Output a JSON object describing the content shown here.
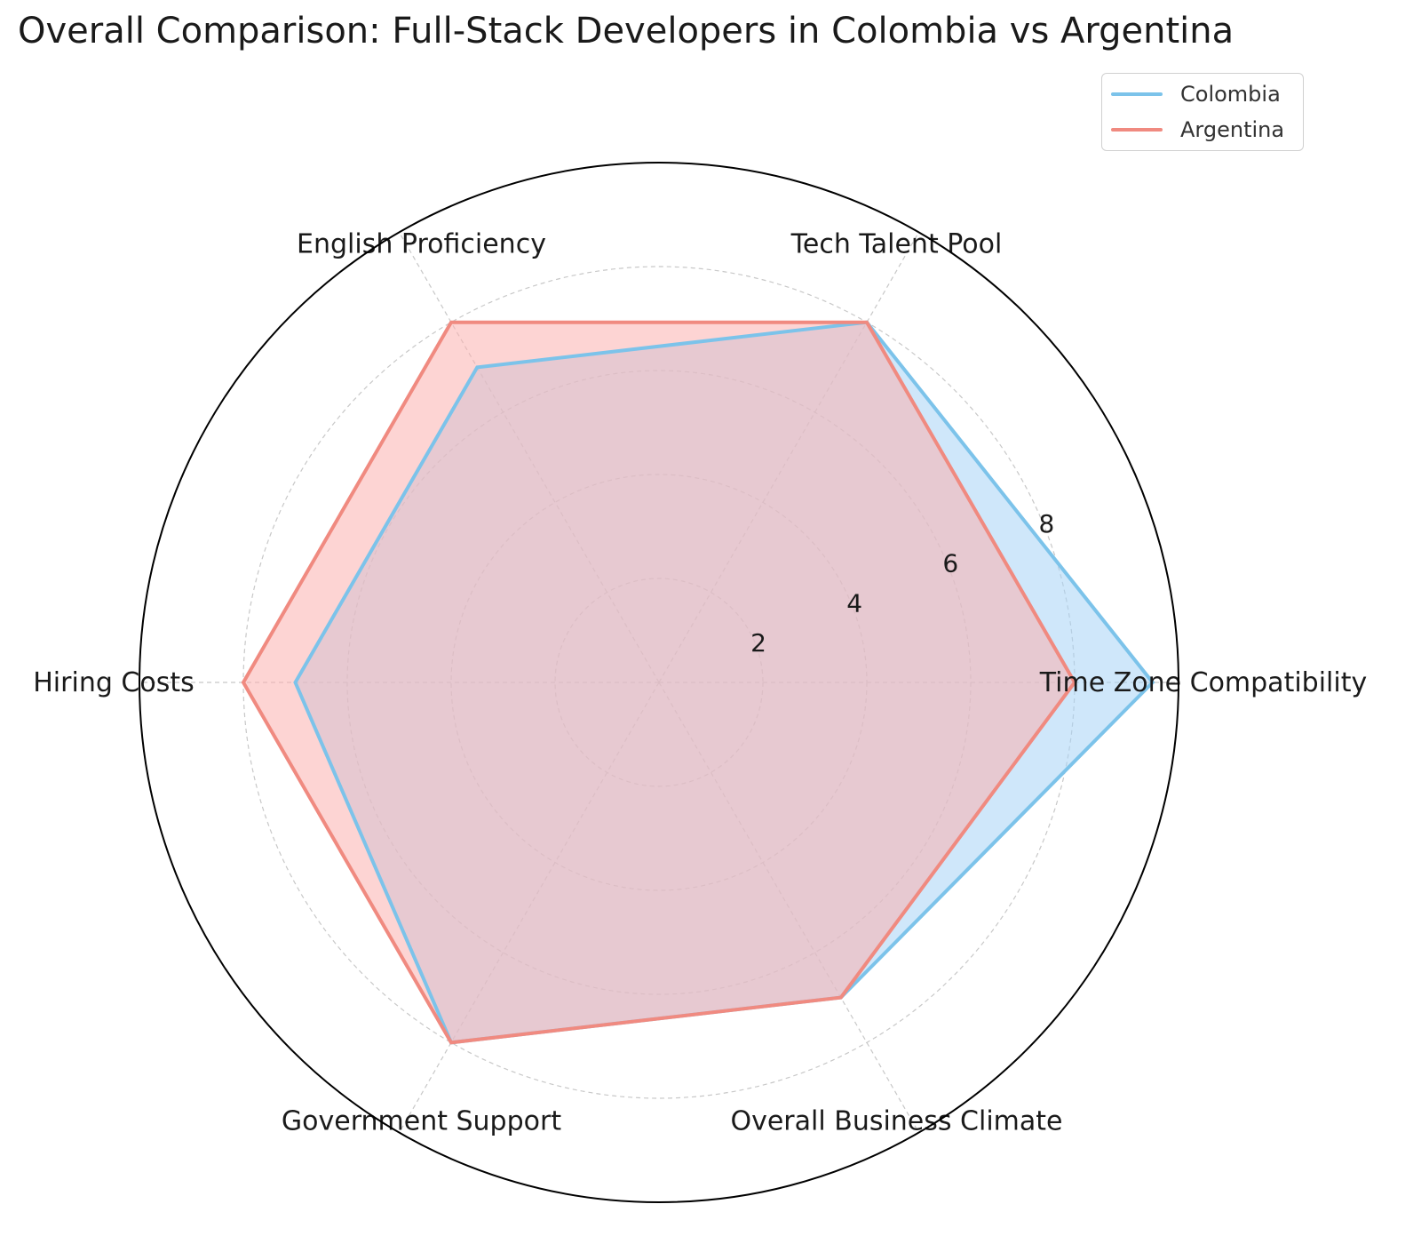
{
  "chart_data": {
    "type": "radar",
    "title": "Overall Comparison: Full-Stack Developers in Colombia vs Argentina",
    "categories": [
      "Time Zone Compatibility",
      "Tech Talent Pool",
      "English Proficiency",
      "Hiring Costs",
      "Government Support",
      "Overall Business Climate"
    ],
    "series": [
      {
        "name": "Colombia",
        "color": "#7cc3ea",
        "fill": "#a8d4f5",
        "values": [
          9.5,
          8.0,
          7.0,
          7.0,
          8.0,
          7.0
        ]
      },
      {
        "name": "Argentina",
        "color": "#f08a80",
        "fill": "#fbb0ae",
        "values": [
          8.0,
          8.0,
          8.0,
          8.0,
          8.0,
          7.0
        ]
      }
    ],
    "rlim": [
      0,
      10
    ],
    "radial_ticks": [
      2,
      4,
      6,
      8
    ],
    "grid": true,
    "legend_position": "top-right"
  }
}
